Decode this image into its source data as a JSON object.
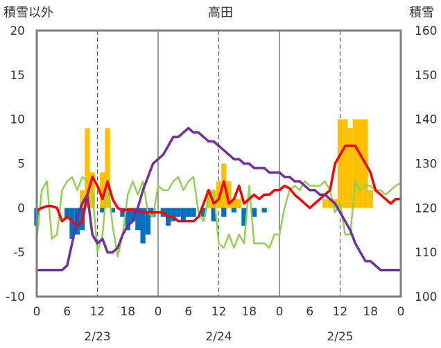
{
  "chart_data": {
    "type": "bar+line",
    "title": "高田",
    "y_left_label": "積雪以外",
    "y_right_label": "積雪",
    "y_left_range": [
      -10,
      20
    ],
    "y_left_ticks": [
      "20",
      "15",
      "10",
      "5",
      "0",
      "-5",
      "-10"
    ],
    "y_right_range": [
      100,
      160
    ],
    "y_right_ticks": [
      "160",
      "150",
      "140",
      "130",
      "120",
      "110",
      "100"
    ],
    "x_range_hours": [
      0,
      72
    ],
    "x_tick_labels": [
      "0",
      "6",
      "12",
      "18",
      "0",
      "6",
      "12",
      "18",
      "0",
      "6",
      "12",
      "18",
      "0"
    ],
    "date_labels": [
      "2/23",
      "2/24",
      "2/25"
    ],
    "grid": "dashed vertical at 12:00 of each day, solid vertical at day boundaries",
    "colors": {
      "snowfall_bar": "#FFC000",
      "negative_bar": "#0070C0",
      "red_line": "#FF0000",
      "green_line": "#92D050",
      "purple_line": "#7030A0",
      "frame": "#7F7F7F"
    },
    "orange_bars": [
      {
        "x": 9,
        "v": 2
      },
      {
        "x": 10,
        "v": 9
      },
      {
        "x": 11,
        "v": 4
      },
      {
        "x": 13,
        "v": 4
      },
      {
        "x": 14,
        "v": 9
      },
      {
        "x": 34,
        "v": 2
      },
      {
        "x": 35,
        "v": 2
      },
      {
        "x": 36,
        "v": 3
      },
      {
        "x": 37,
        "v": 5
      },
      {
        "x": 38,
        "v": 3
      },
      {
        "x": 39,
        "v": 1
      },
      {
        "x": 40,
        "v": 1
      },
      {
        "x": 57,
        "v": 1
      },
      {
        "x": 58,
        "v": 1
      },
      {
        "x": 59,
        "v": 1
      },
      {
        "x": 60,
        "v": 10
      },
      {
        "x": 61,
        "v": 10
      },
      {
        "x": 62,
        "v": 9
      },
      {
        "x": 63,
        "v": 10
      },
      {
        "x": 64,
        "v": 10
      },
      {
        "x": 65,
        "v": 10
      },
      {
        "x": 66,
        "v": 2
      }
    ],
    "blue_bars": [
      {
        "x": 0,
        "v": -2
      },
      {
        "x": 6,
        "v": -1
      },
      {
        "x": 7,
        "v": -3.5
      },
      {
        "x": 8,
        "v": -3
      },
      {
        "x": 9,
        "v": -2.5
      },
      {
        "x": 13,
        "v": -0.5
      },
      {
        "x": 15,
        "v": -0.5
      },
      {
        "x": 17,
        "v": -1
      },
      {
        "x": 18,
        "v": -2.5
      },
      {
        "x": 19,
        "v": -1.5
      },
      {
        "x": 20,
        "v": -2.5
      },
      {
        "x": 21,
        "v": -4
      },
      {
        "x": 22,
        "v": -3
      },
      {
        "x": 23,
        "v": -1
      },
      {
        "x": 25,
        "v": -1
      },
      {
        "x": 26,
        "v": -2
      },
      {
        "x": 27,
        "v": -1.5
      },
      {
        "x": 28,
        "v": -1
      },
      {
        "x": 29,
        "v": -1.5
      },
      {
        "x": 30,
        "v": -1
      },
      {
        "x": 31,
        "v": -1
      },
      {
        "x": 33,
        "v": -1
      },
      {
        "x": 35,
        "v": -1.5
      },
      {
        "x": 37,
        "v": -1
      },
      {
        "x": 39,
        "v": -0.5
      },
      {
        "x": 41,
        "v": -2
      },
      {
        "x": 43,
        "v": -1
      },
      {
        "x": 45,
        "v": -0.5
      }
    ],
    "series": [
      {
        "color_key": "red_line",
        "axis": "left",
        "y": [
          -0.3,
          0,
          0.2,
          0.2,
          0,
          -1.5,
          -1,
          -1.5,
          -2,
          -1.5,
          1.5,
          3.5,
          2.5,
          1,
          3,
          1,
          0,
          -0.3,
          -0.2,
          -0.2,
          -0.3,
          -0.5,
          -0.5,
          -0.5,
          -0.5,
          -0.5,
          -1,
          -1,
          -1.5,
          -1.5,
          -1.5,
          -1.5,
          -1,
          0.5,
          2,
          0.5,
          1,
          3,
          0.5,
          1,
          2.5,
          0.5,
          1,
          1.5,
          1,
          1.5,
          1.5,
          2,
          2,
          2.5,
          2.2,
          1.5,
          1,
          0.5,
          0,
          0.5,
          1,
          1.5,
          2,
          5,
          6,
          7,
          7,
          7,
          6,
          5,
          4,
          2,
          1.5,
          1,
          0.5,
          1,
          1
        ]
      },
      {
        "color_key": "green_line",
        "axis": "left",
        "y": [
          -3.5,
          2,
          3,
          -3.5,
          -3,
          2,
          3,
          3.5,
          2,
          3.5,
          3,
          2,
          -5,
          -3,
          3,
          -2,
          -5.5,
          -3,
          1.5,
          3,
          1.5,
          3,
          -0.5,
          -1,
          2.5,
          2,
          2,
          3,
          3.5,
          2,
          3,
          3.5,
          -0.5,
          -1.5,
          1,
          2,
          -4,
          -4.5,
          -3,
          -4.5,
          -3,
          -4,
          2.5,
          -4,
          -4,
          -4,
          -4.5,
          -3,
          -3,
          0,
          2,
          2.5,
          2,
          3,
          2.5,
          2.5,
          2.5,
          3,
          2,
          -0.5,
          0.5,
          -3,
          -3,
          3,
          2,
          2.5,
          2.5,
          2,
          2,
          1.5,
          2,
          2.5,
          2.8
        ]
      },
      {
        "color_key": "purple_line",
        "axis": "right",
        "y": [
          106,
          106,
          106,
          106,
          106,
          106,
          107,
          112,
          118,
          121,
          123,
          114,
          112,
          113,
          110,
          110,
          111,
          114,
          116,
          117,
          120,
          124,
          127,
          130,
          131,
          132,
          134,
          136,
          136,
          137,
          138,
          137,
          137,
          136,
          135,
          135,
          134,
          133,
          132,
          131,
          131,
          130,
          130,
          129,
          129,
          129,
          128,
          128,
          128,
          127,
          127,
          126,
          126,
          125,
          124,
          124,
          123,
          123,
          122,
          121,
          119,
          117,
          115,
          112,
          110,
          108,
          108,
          107,
          106,
          106,
          106,
          106,
          106
        ]
      }
    ]
  }
}
